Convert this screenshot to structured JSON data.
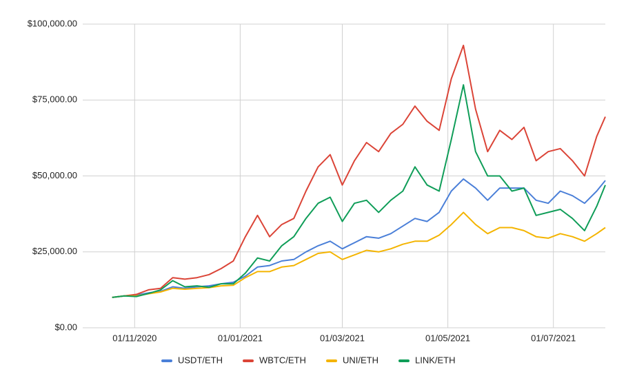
{
  "chart_data": {
    "type": "line",
    "x": [
      "19/10/2020",
      "26/10/2020",
      "02/11/2020",
      "09/11/2020",
      "16/11/2020",
      "23/11/2020",
      "30/11/2020",
      "07/12/2020",
      "14/12/2020",
      "21/12/2020",
      "28/12/2020",
      "04/01/2021",
      "11/01/2021",
      "18/01/2021",
      "25/01/2021",
      "01/02/2021",
      "08/02/2021",
      "15/02/2021",
      "22/02/2021",
      "01/03/2021",
      "08/03/2021",
      "15/03/2021",
      "22/03/2021",
      "29/03/2021",
      "05/04/2021",
      "12/04/2021",
      "19/04/2021",
      "26/04/2021",
      "03/05/2021",
      "10/05/2021",
      "17/05/2021",
      "24/05/2021",
      "31/05/2021",
      "07/06/2021",
      "14/06/2021",
      "21/06/2021",
      "28/06/2021",
      "05/07/2021",
      "12/07/2021",
      "19/07/2021",
      "26/07/2021",
      "31/07/2021"
    ],
    "series": [
      {
        "name": "USDT/ETH",
        "color": "#4a7fd8",
        "values": [
          10000,
          10500,
          10800,
          11500,
          12000,
          13500,
          13000,
          13500,
          13800,
          14500,
          15000,
          17000,
          20000,
          20500,
          22000,
          22500,
          25000,
          27000,
          28500,
          26000,
          28000,
          30000,
          29500,
          31000,
          33500,
          36000,
          35000,
          38000,
          45000,
          49000,
          46000,
          42000,
          46000,
          46000,
          46000,
          42000,
          41000,
          45000,
          43500,
          41000,
          45000,
          48500
        ]
      },
      {
        "name": "WBTC/ETH",
        "color": "#db4437",
        "values": [
          10000,
          10500,
          11000,
          12500,
          13000,
          16500,
          16000,
          16500,
          17500,
          19500,
          22000,
          30000,
          37000,
          30000,
          34000,
          36000,
          45000,
          53000,
          57000,
          47000,
          55000,
          61000,
          58000,
          64000,
          67000,
          73000,
          68000,
          65000,
          82000,
          93000,
          72000,
          58000,
          65000,
          62000,
          66000,
          55000,
          58000,
          59000,
          55000,
          50000,
          63000,
          69500
        ]
      },
      {
        "name": "UNI/ETH",
        "color": "#f4b400",
        "values": [
          10000,
          10500,
          10500,
          11200,
          11800,
          13000,
          12700,
          13000,
          13200,
          13800,
          14000,
          16500,
          18500,
          18500,
          20000,
          20500,
          22500,
          24500,
          25000,
          22500,
          24000,
          25500,
          25000,
          26000,
          27500,
          28500,
          28500,
          30500,
          34000,
          38000,
          34000,
          31000,
          33000,
          33000,
          32000,
          30000,
          29500,
          31000,
          30000,
          28500,
          31000,
          33000
        ]
      },
      {
        "name": "LINK/ETH",
        "color": "#0f9d58",
        "values": [
          10000,
          10500,
          10300,
          11300,
          12500,
          15500,
          13500,
          13800,
          13300,
          14500,
          14500,
          18000,
          23000,
          22000,
          27000,
          30000,
          36000,
          41000,
          43000,
          35000,
          41000,
          42000,
          38000,
          42000,
          45000,
          53000,
          47000,
          45000,
          62000,
          80000,
          58000,
          50000,
          50000,
          45000,
          46000,
          37000,
          38000,
          39000,
          36000,
          32000,
          40000,
          47000
        ]
      }
    ],
    "xlim": [
      "02/10/2020",
      "31/07/2021"
    ],
    "xticks": [
      "01/11/2020",
      "01/01/2021",
      "01/03/2021",
      "01/05/2021",
      "01/07/2021"
    ],
    "ylim": [
      0,
      100000
    ],
    "yticks": [
      {
        "value": 0,
        "label": "$0.00"
      },
      {
        "value": 25000,
        "label": "$25,000.00"
      },
      {
        "value": 50000,
        "label": "$50,000.00"
      },
      {
        "value": 75000,
        "label": "$75,000.00"
      },
      {
        "value": 100000,
        "label": "$100,000.00"
      }
    ],
    "grid": true,
    "legend": "bottom"
  }
}
